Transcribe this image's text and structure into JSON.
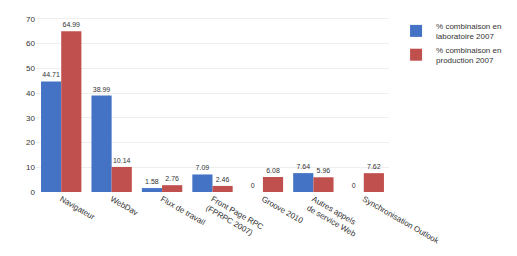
{
  "chart_data": {
    "type": "bar",
    "categories": [
      "Navigateur",
      "WebDav",
      "Flux de travail",
      "Front Page RPC\n(FPRPC 2007)",
      "Groove 2010",
      "Autres appels\nde service Web",
      "Synchronisation Outlook"
    ],
    "series": [
      {
        "name": "% combinaison en\nlaboratoire 2007",
        "color": "#4472C4",
        "values": [
          44.71,
          38.99,
          1.58,
          7.09,
          0,
          7.64,
          0
        ]
      },
      {
        "name": "% combinaison en\nproduction 2007",
        "color": "#C0504D",
        "values": [
          64.99,
          10.14,
          2.76,
          2.46,
          6.08,
          5.96,
          7.62
        ]
      }
    ],
    "ylim": [
      0,
      72
    ],
    "yticks": [
      0,
      10,
      20,
      30,
      40,
      50,
      60,
      70
    ],
    "grid": true,
    "legend": "right",
    "data_labels": true
  }
}
